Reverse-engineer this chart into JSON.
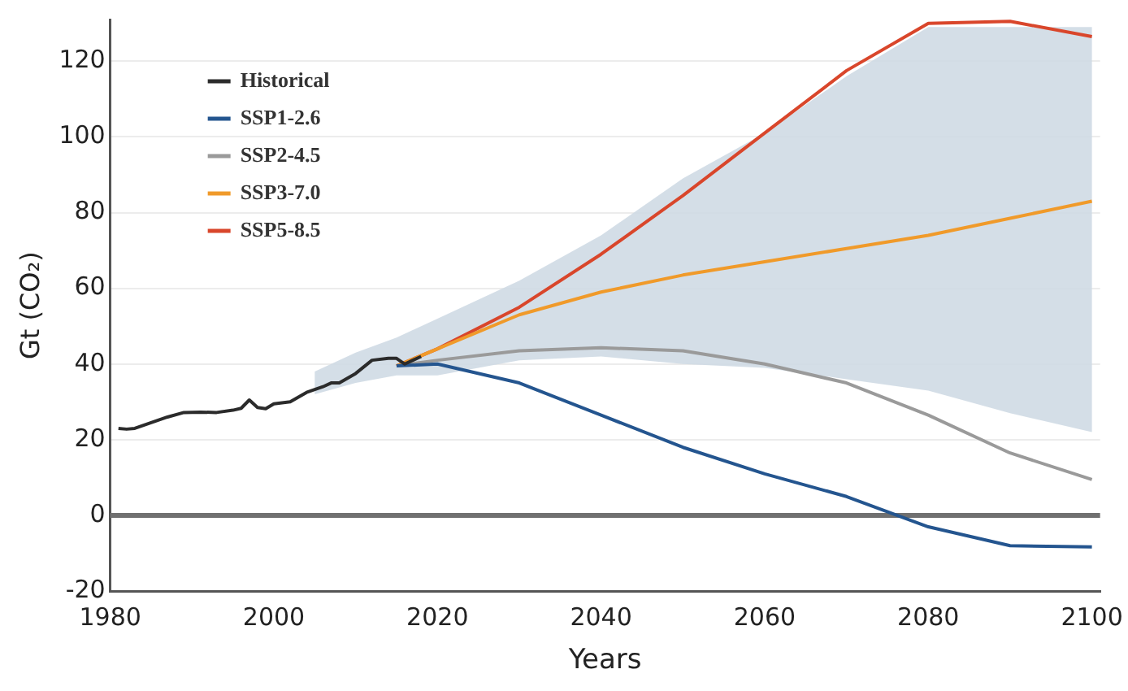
{
  "chart_data": {
    "type": "line",
    "xlabel": "Years",
    "ylabel": "Gt (CO₂)",
    "xlim": [
      1980,
      2101
    ],
    "xticks": [
      1980,
      2000,
      2020,
      2040,
      2060,
      2080,
      2100
    ],
    "ylim": [
      -20,
      131
    ],
    "yticks": [
      -20,
      0,
      20,
      40,
      60,
      80,
      100,
      120
    ],
    "grid": "y",
    "legend": "top left",
    "marker": "none",
    "line_style": "solid",
    "ref_lines": [
      {
        "axis": "y",
        "value": 0,
        "color": "#707070"
      }
    ],
    "series": [
      {
        "type": "area",
        "color": "#cfdae4",
        "x": [
          2005,
          2010,
          2015,
          2020,
          2030,
          2040,
          2050,
          2060,
          2070,
          2080,
          2090,
          2100
        ],
        "values": [
          null,
          null,
          null,
          null,
          null,
          null,
          null,
          null,
          null,
          null,
          null,
          null
        ],
        "lower": [
          32,
          35,
          37,
          37,
          41,
          42,
          40,
          39,
          36,
          33,
          27,
          22
        ],
        "upper": [
          38,
          43,
          47,
          52,
          62,
          74,
          89,
          101,
          116,
          129,
          129,
          129
        ]
      },
      {
        "name": "Historical",
        "color": "#2b2b2b",
        "x": [
          1981,
          1982,
          1983,
          1985,
          1987,
          1989,
          1991,
          1993,
          1995,
          1996,
          1997,
          1998,
          1999,
          2000,
          2002,
          2004,
          2006,
          2007,
          2008,
          2010,
          2012,
          2014,
          2015,
          2016,
          2017,
          2018
        ],
        "values": [
          23,
          22.8,
          23,
          24.5,
          26,
          27.2,
          27.3,
          27.2,
          27.8,
          28.3,
          30.5,
          28.5,
          28.2,
          29.5,
          30,
          32.5,
          34,
          35,
          35,
          37.5,
          41,
          41.5,
          41.5,
          40,
          41,
          42
        ]
      },
      {
        "name": "SSP1-2.6",
        "color": "#24558f",
        "x": [
          2015,
          2020,
          2030,
          2040,
          2050,
          2060,
          2070,
          2080,
          2090,
          2100
        ],
        "values": [
          39.5,
          40,
          35,
          26.5,
          18,
          11,
          5,
          -3,
          -8,
          -8.3
        ]
      },
      {
        "name": "SSP2-4.5",
        "color": "#9a9a9a",
        "x": [
          2015,
          2020,
          2030,
          2040,
          2050,
          2060,
          2070,
          2080,
          2090,
          2100
        ],
        "values": [
          39.5,
          41,
          43.5,
          44.3,
          43.5,
          40,
          35,
          26.5,
          16.5,
          9.5
        ]
      },
      {
        "name": "SSP3-7.0",
        "color": "#f09a2a",
        "x": [
          2015,
          2020,
          2030,
          2040,
          2050,
          2060,
          2070,
          2080,
          2090,
          2100
        ],
        "values": [
          39.5,
          44,
          53,
          59,
          63.5,
          67,
          70.5,
          74,
          78.5,
          83
        ]
      },
      {
        "name": "SSP5-8.5",
        "color": "#d9462b",
        "x": [
          2015,
          2020,
          2030,
          2040,
          2050,
          2060,
          2070,
          2080,
          2090,
          2100
        ],
        "values": [
          39.5,
          44,
          55,
          69,
          84.5,
          101,
          117.5,
          130,
          130.5,
          126.5
        ]
      }
    ]
  }
}
